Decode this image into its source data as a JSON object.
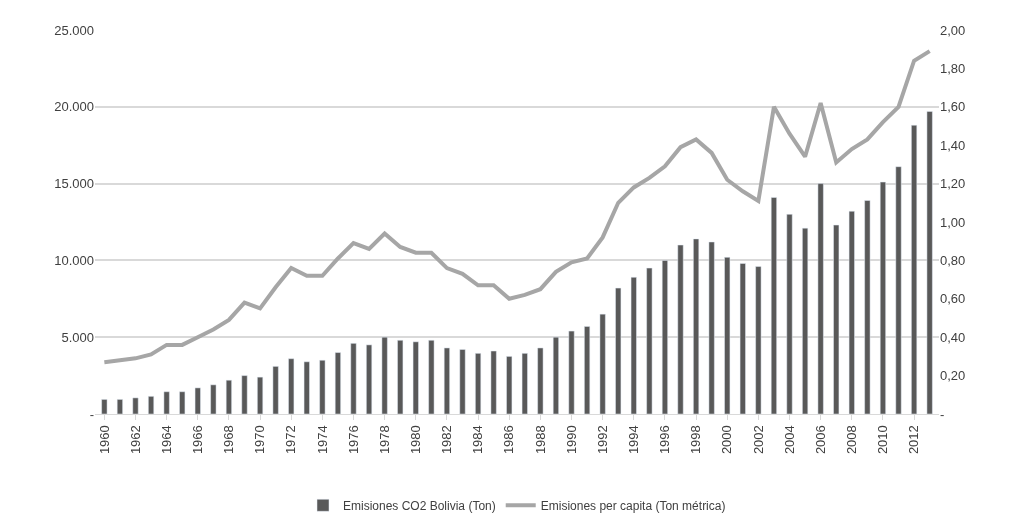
{
  "chart_data": {
    "type": "bar",
    "categories": [
      "1960",
      null,
      "1962",
      null,
      "1964",
      null,
      "1966",
      null,
      "1968",
      null,
      "1970",
      null,
      "1972",
      null,
      "1974",
      null,
      "1976",
      null,
      "1978",
      null,
      "1980",
      null,
      "1982",
      null,
      "1984",
      null,
      "1986",
      null,
      "1988",
      null,
      "1990",
      null,
      "1992",
      null,
      "1994",
      null,
      "1996",
      null,
      "1998",
      null,
      "2000",
      null,
      "2002",
      null,
      "2004",
      null,
      "2006",
      null,
      "2008",
      null,
      "2010",
      null,
      "2012",
      null
    ],
    "series": [
      {
        "name": "Emisiones CO2 Bolivia (Ton)",
        "color": "#595959",
        "values": [
          950,
          950,
          1050,
          1150,
          1450,
          1450,
          1700,
          1900,
          2200,
          2500,
          2400,
          3100,
          3600,
          3400,
          3500,
          4000,
          4600,
          4500,
          5000,
          4800,
          4700,
          4800,
          4300,
          4200,
          3950,
          4100,
          3750,
          3950,
          4300,
          5000,
          5400,
          5700,
          6500,
          8200,
          8900,
          9500,
          10000,
          11000,
          11400,
          11200,
          10200,
          9800,
          9600,
          14100,
          13000,
          12100,
          15000,
          12300,
          13200,
          13900,
          15100,
          16100,
          18800,
          19700
        ]
      },
      {
        "name": "Emisiones per capita (Ton métrica)",
        "type": "line",
        "axis": "y2",
        "color": "#a6a6a6",
        "values": [
          0.27,
          0.28,
          0.29,
          0.31,
          0.36,
          0.36,
          0.4,
          0.44,
          0.49,
          0.58,
          0.55,
          0.66,
          0.76,
          0.72,
          0.72,
          0.81,
          0.89,
          0.86,
          0.94,
          0.87,
          0.84,
          0.84,
          0.76,
          0.73,
          0.67,
          0.67,
          0.6,
          0.62,
          0.65,
          0.74,
          0.79,
          0.81,
          0.92,
          1.1,
          1.18,
          1.23,
          1.29,
          1.39,
          1.43,
          1.36,
          1.22,
          1.16,
          1.11,
          1.6,
          1.46,
          1.34,
          1.62,
          1.31,
          1.38,
          1.43,
          1.52,
          1.6,
          1.84,
          1.89
        ]
      }
    ],
    "ylim": [
      0,
      25000
    ],
    "yticks": [
      {
        "value": 0,
        "label": "-"
      },
      {
        "value": 5000,
        "label": "5.000"
      },
      {
        "value": 10000,
        "label": "10.000"
      },
      {
        "value": 15000,
        "label": "15.000"
      },
      {
        "value": 20000,
        "label": "20.000"
      },
      {
        "value": 25000,
        "label": "25.000"
      }
    ],
    "y2lim": [
      0,
      2
    ],
    "y2ticks": [
      {
        "value": 0,
        "label": "-"
      },
      {
        "value": 0.2,
        "label": "0,20"
      },
      {
        "value": 0.4,
        "label": "0,40"
      },
      {
        "value": 0.6,
        "label": "0,60"
      },
      {
        "value": 0.8,
        "label": "0,80"
      },
      {
        "value": 1.0,
        "label": "1,00"
      },
      {
        "value": 1.2,
        "label": "1,20"
      },
      {
        "value": 1.4,
        "label": "1,40"
      },
      {
        "value": 1.6,
        "label": "1,60"
      },
      {
        "value": 1.8,
        "label": "1,80"
      },
      {
        "value": 2.0,
        "label": "2,00"
      }
    ],
    "grid": "y",
    "legend": "bottom",
    "marker": "none",
    "line_style": "solid"
  }
}
